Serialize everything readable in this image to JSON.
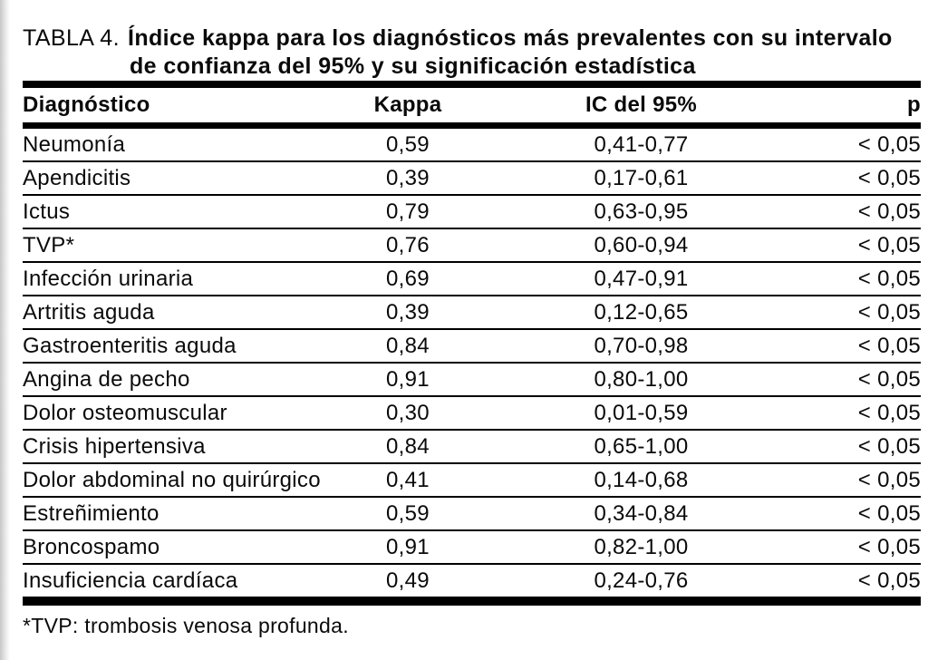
{
  "page": {
    "background": "#ffffff",
    "text_color": "#0a0a0a",
    "rule_color": "#000000",
    "scan_edge_color": "#c7c7c7"
  },
  "caption": {
    "label": "TABLA 4.",
    "title_line1": "Índice kappa para los diagnósticos más prevalentes con su intervalo",
    "title_line2": "de confianza del 95% y su significación estadística"
  },
  "table": {
    "columns": [
      "Diagnóstico",
      "Kappa",
      "IC del 95%",
      "p"
    ],
    "rows": [
      {
        "diagnostico": "Neumonía",
        "kappa": "0,59",
        "ic95": "0,41-0,77",
        "p": "< 0,05"
      },
      {
        "diagnostico": "Apendicitis",
        "kappa": "0,39",
        "ic95": "0,17-0,61",
        "p": "< 0,05"
      },
      {
        "diagnostico": "Ictus",
        "kappa": "0,79",
        "ic95": "0,63-0,95",
        "p": "< 0,05"
      },
      {
        "diagnostico": "TVP*",
        "kappa": "0,76",
        "ic95": "0,60-0,94",
        "p": "< 0,05"
      },
      {
        "diagnostico": "Infección urinaria",
        "kappa": "0,69",
        "ic95": "0,47-0,91",
        "p": "< 0,05"
      },
      {
        "diagnostico": "Artritis aguda",
        "kappa": "0,39",
        "ic95": "0,12-0,65",
        "p": "< 0,05"
      },
      {
        "diagnostico": "Gastroenteritis aguda",
        "kappa": "0,84",
        "ic95": "0,70-0,98",
        "p": "< 0,05"
      },
      {
        "diagnostico": "Angina de pecho",
        "kappa": "0,91",
        "ic95": "0,80-1,00",
        "p": "< 0,05"
      },
      {
        "diagnostico": "Dolor osteomuscular",
        "kappa": "0,30",
        "ic95": "0,01-0,59",
        "p": "< 0,05"
      },
      {
        "diagnostico": "Crisis hipertensiva",
        "kappa": "0,84",
        "ic95": "0,65-1,00",
        "p": "< 0,05"
      },
      {
        "diagnostico": "Dolor abdominal no quirúrgico",
        "kappa": "0,41",
        "ic95": "0,14-0,68",
        "p": "< 0,05"
      },
      {
        "diagnostico": "Estreñimiento",
        "kappa": "0,59",
        "ic95": "0,34-0,84",
        "p": "< 0,05"
      },
      {
        "diagnostico": "Broncospamo",
        "kappa": "0,91",
        "ic95": "0,82-1,00",
        "p": "< 0,05"
      },
      {
        "diagnostico": "Insuficiencia cardíaca",
        "kappa": "0,49",
        "ic95": "0,24-0,76",
        "p": "< 0,05"
      }
    ]
  },
  "footnote": "*TVP: trombosis venosa profunda."
}
